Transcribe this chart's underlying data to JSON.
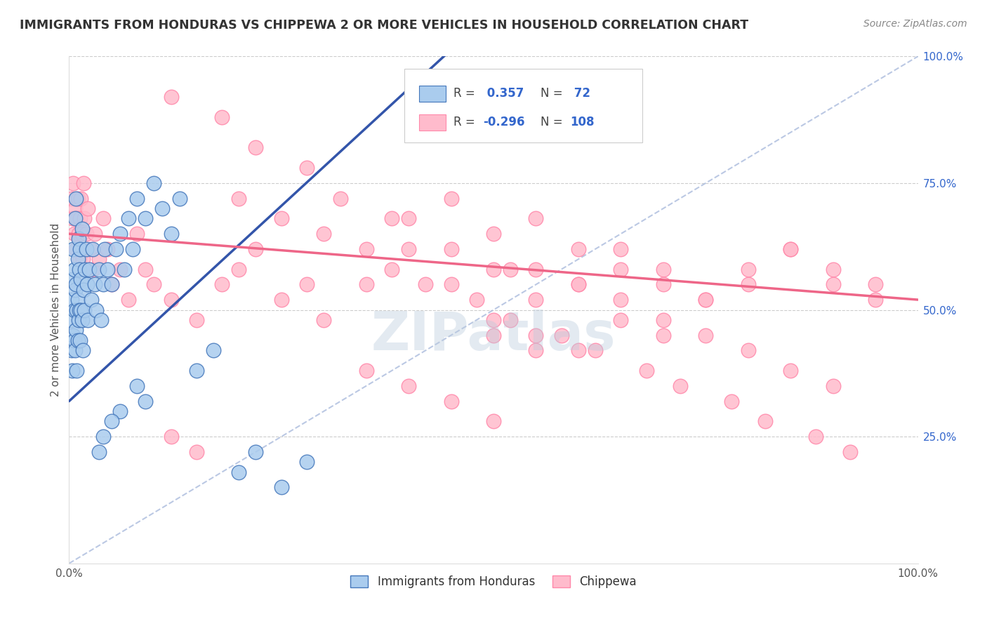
{
  "title": "IMMIGRANTS FROM HONDURAS VS CHIPPEWA 2 OR MORE VEHICLES IN HOUSEHOLD CORRELATION CHART",
  "source": "Source: ZipAtlas.com",
  "ylabel": "2 or more Vehicles in Household",
  "legend_labels": [
    "Immigrants from Honduras",
    "Chippewa"
  ],
  "r_blue": 0.357,
  "n_blue": 72,
  "r_pink": -0.296,
  "n_pink": 108,
  "blue_fill": "#AACCEE",
  "blue_edge": "#4477BB",
  "pink_fill": "#FFBBCC",
  "pink_edge": "#FF88AA",
  "blue_line_color": "#3355AA",
  "pink_line_color": "#EE6688",
  "dashed_line_color": "#AABBDD",
  "watermark": "ZIPatlas",
  "watermark_color": "#BBCCDD",
  "xlim": [
    0.0,
    1.0
  ],
  "ylim": [
    0.0,
    1.0
  ],
  "ytick_labels_right": [
    "25.0%",
    "50.0%",
    "75.0%",
    "100.0%"
  ],
  "ytick_vals_right": [
    0.25,
    0.5,
    0.75,
    1.0
  ],
  "blue_x": [
    0.002,
    0.003,
    0.003,
    0.004,
    0.004,
    0.005,
    0.005,
    0.006,
    0.006,
    0.006,
    0.007,
    0.007,
    0.007,
    0.008,
    0.008,
    0.008,
    0.009,
    0.009,
    0.01,
    0.01,
    0.01,
    0.011,
    0.011,
    0.012,
    0.012,
    0.013,
    0.013,
    0.014,
    0.014,
    0.015,
    0.015,
    0.016,
    0.017,
    0.018,
    0.019,
    0.02,
    0.021,
    0.022,
    0.024,
    0.026,
    0.028,
    0.03,
    0.032,
    0.035,
    0.038,
    0.04,
    0.042,
    0.045,
    0.05,
    0.055,
    0.06,
    0.065,
    0.07,
    0.075,
    0.08,
    0.09,
    0.1,
    0.11,
    0.12,
    0.13,
    0.15,
    0.17,
    0.2,
    0.22,
    0.25,
    0.28,
    0.08,
    0.09,
    0.06,
    0.05,
    0.04,
    0.035
  ],
  "blue_y": [
    0.48,
    0.52,
    0.42,
    0.56,
    0.38,
    0.45,
    0.62,
    0.5,
    0.44,
    0.58,
    0.42,
    0.54,
    0.68,
    0.46,
    0.55,
    0.72,
    0.5,
    0.38,
    0.52,
    0.6,
    0.44,
    0.48,
    0.64,
    0.5,
    0.58,
    0.44,
    0.62,
    0.5,
    0.56,
    0.48,
    0.66,
    0.42,
    0.54,
    0.5,
    0.58,
    0.62,
    0.55,
    0.48,
    0.58,
    0.52,
    0.62,
    0.55,
    0.5,
    0.58,
    0.48,
    0.55,
    0.62,
    0.58,
    0.55,
    0.62,
    0.65,
    0.58,
    0.68,
    0.62,
    0.72,
    0.68,
    0.75,
    0.7,
    0.65,
    0.72,
    0.38,
    0.42,
    0.18,
    0.22,
    0.15,
    0.2,
    0.35,
    0.32,
    0.3,
    0.28,
    0.25,
    0.22
  ],
  "pink_x": [
    0.003,
    0.004,
    0.005,
    0.006,
    0.007,
    0.008,
    0.009,
    0.01,
    0.011,
    0.012,
    0.013,
    0.014,
    0.015,
    0.016,
    0.017,
    0.018,
    0.02,
    0.022,
    0.025,
    0.028,
    0.03,
    0.035,
    0.04,
    0.045,
    0.05,
    0.06,
    0.07,
    0.08,
    0.09,
    0.1,
    0.12,
    0.15,
    0.18,
    0.2,
    0.22,
    0.25,
    0.28,
    0.3,
    0.35,
    0.4,
    0.45,
    0.5,
    0.55,
    0.6,
    0.65,
    0.7,
    0.75,
    0.8,
    0.85,
    0.9,
    0.95,
    0.4,
    0.45,
    0.5,
    0.55,
    0.6,
    0.65,
    0.7,
    0.75,
    0.8,
    0.85,
    0.9,
    0.95,
    0.5,
    0.55,
    0.6,
    0.65,
    0.7,
    0.2,
    0.25,
    0.3,
    0.35,
    0.38,
    0.42,
    0.48,
    0.52,
    0.58,
    0.62,
    0.68,
    0.72,
    0.78,
    0.82,
    0.88,
    0.92,
    0.55,
    0.6,
    0.65,
    0.7,
    0.75,
    0.8,
    0.85,
    0.9,
    0.35,
    0.4,
    0.45,
    0.5,
    0.5,
    0.55,
    0.12,
    0.15,
    0.12,
    0.18,
    0.22,
    0.28,
    0.32,
    0.38,
    0.45,
    0.52
  ],
  "pink_y": [
    0.72,
    0.68,
    0.75,
    0.65,
    0.7,
    0.62,
    0.68,
    0.72,
    0.65,
    0.6,
    0.68,
    0.72,
    0.65,
    0.6,
    0.75,
    0.68,
    0.65,
    0.7,
    0.62,
    0.58,
    0.65,
    0.6,
    0.68,
    0.62,
    0.55,
    0.58,
    0.52,
    0.65,
    0.58,
    0.55,
    0.52,
    0.48,
    0.55,
    0.58,
    0.62,
    0.52,
    0.55,
    0.48,
    0.55,
    0.62,
    0.55,
    0.58,
    0.52,
    0.55,
    0.62,
    0.58,
    0.52,
    0.55,
    0.62,
    0.58,
    0.55,
    0.68,
    0.72,
    0.65,
    0.68,
    0.62,
    0.58,
    0.55,
    0.52,
    0.58,
    0.62,
    0.55,
    0.52,
    0.48,
    0.45,
    0.42,
    0.48,
    0.45,
    0.72,
    0.68,
    0.65,
    0.62,
    0.58,
    0.55,
    0.52,
    0.48,
    0.45,
    0.42,
    0.38,
    0.35,
    0.32,
    0.28,
    0.25,
    0.22,
    0.58,
    0.55,
    0.52,
    0.48,
    0.45,
    0.42,
    0.38,
    0.35,
    0.38,
    0.35,
    0.32,
    0.28,
    0.45,
    0.42,
    0.25,
    0.22,
    0.92,
    0.88,
    0.82,
    0.78,
    0.72,
    0.68,
    0.62,
    0.58
  ]
}
